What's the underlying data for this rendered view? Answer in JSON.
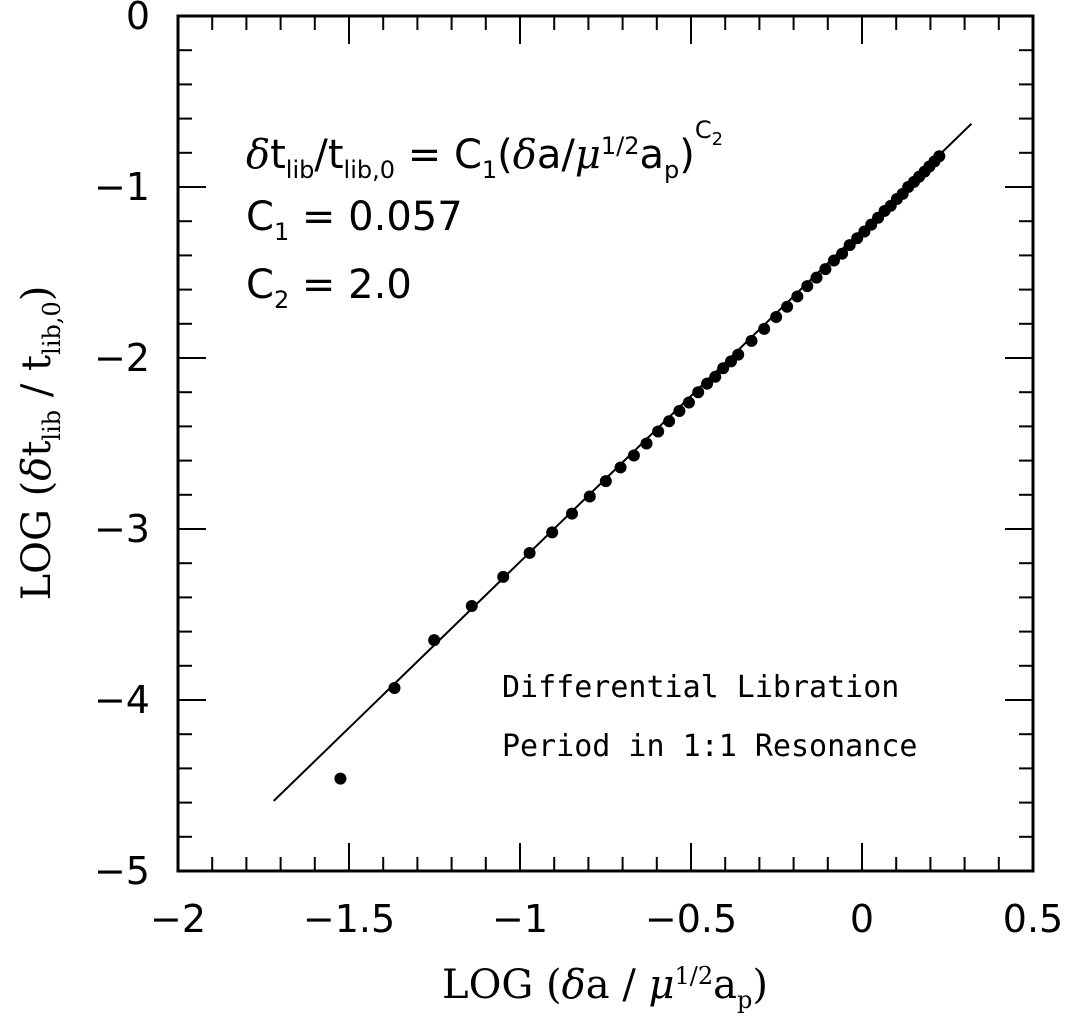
{
  "chart_data": {
    "type": "scatter",
    "xlabel": {
      "prefix": "LOG (",
      "delta": "δ",
      "a": "a / ",
      "mu": "μ",
      "power": "1/2",
      "a2": "a",
      "sub": "p",
      "suffix": ")"
    },
    "ylabel": {
      "prefix": "LOG (",
      "delta": "δ",
      "t": "t",
      "sub1": "lib",
      "mid": " / t",
      "sub2": "lib,0",
      "suffix": ")"
    },
    "xlim": [
      -2,
      0.5
    ],
    "ylim": [
      -5,
      0
    ],
    "xticks": [
      {
        "value": -2,
        "label": "−2"
      },
      {
        "value": -1.5,
        "label": "−1.5"
      },
      {
        "value": -1,
        "label": "−1"
      },
      {
        "value": -0.5,
        "label": "−0.5"
      },
      {
        "value": 0,
        "label": "0"
      },
      {
        "value": 0.5,
        "label": "0.5"
      }
    ],
    "yticks": [
      {
        "value": 0,
        "label": "0"
      },
      {
        "value": -1,
        "label": "−1"
      },
      {
        "value": -2,
        "label": "−2"
      },
      {
        "value": -3,
        "label": "−3"
      },
      {
        "value": -4,
        "label": "−4"
      },
      {
        "value": -5,
        "label": "−5"
      }
    ],
    "x_minor_step": 0.1,
    "y_minor_step": 0.2,
    "grid": false,
    "fit_line": {
      "x": [
        -1.72,
        0.32
      ],
      "y": [
        -4.59,
        -0.63
      ]
    },
    "points": [
      {
        "x": -1.525,
        "y": -4.46
      },
      {
        "x": -1.367,
        "y": -3.93
      },
      {
        "x": -1.251,
        "y": -3.65
      },
      {
        "x": -1.141,
        "y": -3.45
      },
      {
        "x": -1.049,
        "y": -3.28
      },
      {
        "x": -0.972,
        "y": -3.14
      },
      {
        "x": -0.906,
        "y": -3.02
      },
      {
        "x": -0.848,
        "y": -2.91
      },
      {
        "x": -0.796,
        "y": -2.81
      },
      {
        "x": -0.749,
        "y": -2.72
      },
      {
        "x": -0.706,
        "y": -2.64
      },
      {
        "x": -0.667,
        "y": -2.57
      },
      {
        "x": -0.63,
        "y": -2.5
      },
      {
        "x": -0.596,
        "y": -2.43
      },
      {
        "x": -0.564,
        "y": -2.37
      },
      {
        "x": -0.534,
        "y": -2.31
      },
      {
        "x": -0.506,
        "y": -2.26
      },
      {
        "x": -0.479,
        "y": -2.2
      },
      {
        "x": -0.453,
        "y": -2.15
      },
      {
        "x": -0.429,
        "y": -2.11
      },
      {
        "x": -0.406,
        "y": -2.06
      },
      {
        "x": -0.383,
        "y": -2.02
      },
      {
        "x": -0.362,
        "y": -1.98
      },
      {
        "x": -0.323,
        "y": -1.9
      },
      {
        "x": -0.286,
        "y": -1.83
      },
      {
        "x": -0.251,
        "y": -1.76
      },
      {
        "x": -0.219,
        "y": -1.7
      },
      {
        "x": -0.189,
        "y": -1.64
      },
      {
        "x": -0.16,
        "y": -1.58
      },
      {
        "x": -0.133,
        "y": -1.53
      },
      {
        "x": -0.107,
        "y": -1.48
      },
      {
        "x": -0.082,
        "y": -1.43
      },
      {
        "x": -0.058,
        "y": -1.39
      },
      {
        "x": -0.036,
        "y": -1.34
      },
      {
        "x": -0.014,
        "y": -1.3
      },
      {
        "x": 0.007,
        "y": -1.26
      },
      {
        "x": 0.027,
        "y": -1.22
      },
      {
        "x": 0.047,
        "y": -1.18
      },
      {
        "x": 0.066,
        "y": -1.14
      },
      {
        "x": 0.084,
        "y": -1.11
      },
      {
        "x": 0.102,
        "y": -1.07
      },
      {
        "x": 0.119,
        "y": -1.04
      },
      {
        "x": 0.135,
        "y": -1.0
      },
      {
        "x": 0.152,
        "y": -0.97
      },
      {
        "x": 0.167,
        "y": -0.94
      },
      {
        "x": 0.183,
        "y": -0.91
      },
      {
        "x": 0.197,
        "y": -0.88
      },
      {
        "x": 0.212,
        "y": -0.85
      },
      {
        "x": 0.226,
        "y": -0.82
      }
    ],
    "formula": {
      "delta": "δ",
      "t1": "t",
      "s1": "lib",
      "slash": "/t",
      "s2": "lib,0",
      "eq": " = C",
      "s3": "1",
      "open": "(",
      "delta2": "δ",
      "a": "a/",
      "mu": "μ",
      "half": "1/2",
      "a2": "a",
      "s4": "p",
      "close": ")",
      "expC": "C",
      "expSub": "2"
    },
    "c1": {
      "c": "C",
      "sub": "1",
      "rest": " = 0.057"
    },
    "c2": {
      "c": "C",
      "sub": "2",
      "rest": " = 2.0"
    },
    "note_line1": "Differential Libration",
    "note_line2": "Period in 1:1 Resonance"
  }
}
